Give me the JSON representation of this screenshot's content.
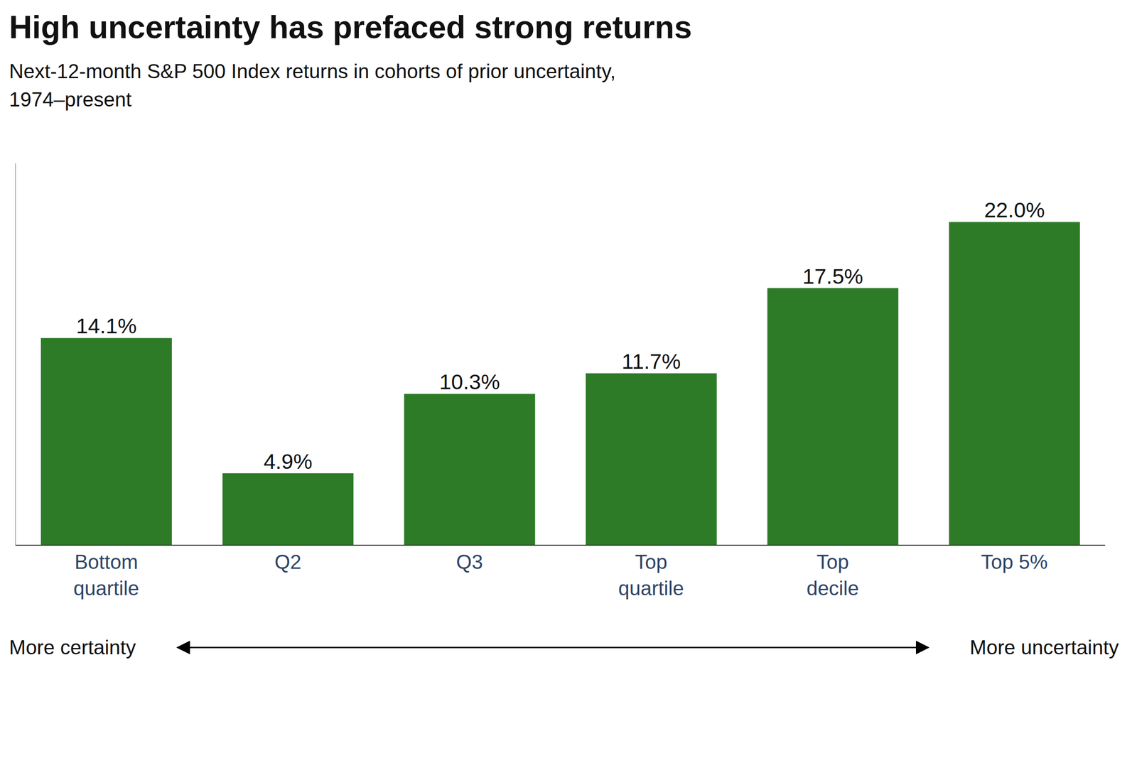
{
  "chart_data": {
    "type": "bar",
    "title": "High uncertainty has prefaced strong returns",
    "subtitle": "Next-12-month S&P 500 Index returns in cohorts of prior uncertainty,\n1974–present",
    "categories": [
      "Bottom\nquartile",
      "Q2",
      "Q3",
      "Top\nquartile",
      "Top\ndecile",
      "Top 5%"
    ],
    "values": [
      14.1,
      4.9,
      10.3,
      11.7,
      17.5,
      22.0
    ],
    "value_labels": [
      "14.1%",
      "4.9%",
      "10.3%",
      "11.7%",
      "17.5%",
      "22.0%"
    ],
    "data_labels": true,
    "color": "#2d7a27",
    "ylim": [
      0,
      26
    ],
    "tick_labels": "x",
    "grid": false,
    "annotations": [
      "More certainty",
      "More uncertainty"
    ]
  }
}
